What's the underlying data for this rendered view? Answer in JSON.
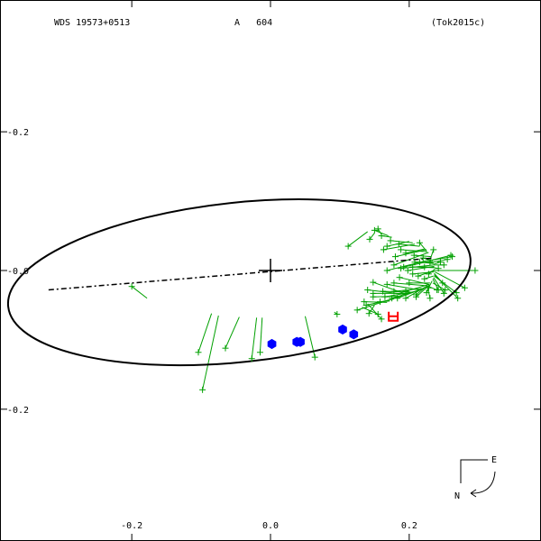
{
  "header": {
    "system": "WDS 19573+0513",
    "pair": "A   604",
    "reference": "(Tok2015c)"
  },
  "orientation": {
    "east_label": "E",
    "north_label": "N"
  },
  "colors": {
    "frame": "#000000",
    "orbit": "#000000",
    "measures": "#00a000",
    "speckle": "#0000ff",
    "highlight": "#ff0000"
  },
  "chart_data": {
    "type": "scatter",
    "title": "",
    "xlim": [
      -0.39,
      0.39
    ],
    "ylim": [
      -0.39,
      0.39
    ],
    "x_ticks": [
      {
        "value": -0.2,
        "label": "-0.2"
      },
      {
        "value": 0.0,
        "label": "0.0"
      },
      {
        "value": 0.2,
        "label": "0.2"
      }
    ],
    "y_ticks": [
      {
        "value": 0.2,
        "label": "-0.2"
      },
      {
        "value": 0.0,
        "label": "-0.0"
      },
      {
        "value": -0.2,
        "label": "-0.2"
      }
    ],
    "primary": [
      0,
      0
    ],
    "orbit_ellipse": {
      "center": [
        -0.045,
        -0.017
      ],
      "a": 0.335,
      "b": 0.115,
      "angle_deg": 6
    },
    "line_of_nodes": [
      [
        -0.32,
        -0.028
      ],
      [
        0.235,
        0.018
      ]
    ],
    "visual_measures": [
      {
        "obs": [
          -0.2,
          -0.023
        ],
        "orb": [
          -0.178,
          -0.04
        ]
      },
      {
        "obs": [
          -0.104,
          -0.118
        ],
        "orb": [
          -0.085,
          -0.062
        ]
      },
      {
        "obs": [
          -0.098,
          -0.172
        ],
        "orb": [
          -0.075,
          -0.065
        ]
      },
      {
        "obs": [
          -0.065,
          -0.112
        ],
        "orb": [
          -0.045,
          -0.067
        ]
      },
      {
        "obs": [
          -0.027,
          -0.127
        ],
        "orb": [
          -0.02,
          -0.068
        ]
      },
      {
        "obs": [
          -0.015,
          -0.118
        ],
        "orb": [
          -0.012,
          -0.068
        ]
      },
      {
        "obs": [
          0.064,
          -0.125
        ],
        "orb": [
          0.05,
          -0.066
        ]
      },
      {
        "obs": [
          0.096,
          -0.063
        ],
        "orb": [
          0.092,
          -0.06
        ]
      },
      {
        "obs": [
          0.155,
          -0.063
        ],
        "orb": [
          0.132,
          -0.053
        ]
      },
      {
        "obs": [
          0.16,
          -0.07
        ],
        "orb": [
          0.14,
          -0.048
        ]
      },
      {
        "obs": [
          0.125,
          -0.057
        ],
        "orb": [
          0.185,
          -0.038
        ]
      },
      {
        "obs": [
          0.148,
          -0.033
        ],
        "orb": [
          0.2,
          -0.033
        ]
      },
      {
        "obs": [
          0.165,
          -0.038
        ],
        "orb": [
          0.21,
          -0.03
        ]
      },
      {
        "obs": [
          0.178,
          -0.03
        ],
        "orb": [
          0.218,
          -0.026
        ]
      },
      {
        "obs": [
          0.175,
          -0.04
        ],
        "orb": [
          0.212,
          -0.029
        ]
      },
      {
        "obs": [
          0.195,
          -0.04
        ],
        "orb": [
          0.223,
          -0.024
        ]
      },
      {
        "obs": [
          0.21,
          -0.035
        ],
        "orb": [
          0.226,
          -0.022
        ]
      },
      {
        "obs": [
          0.178,
          -0.018
        ],
        "orb": [
          0.225,
          -0.022
        ]
      },
      {
        "obs": [
          0.2,
          -0.018
        ],
        "orb": [
          0.23,
          -0.018
        ]
      },
      {
        "obs": [
          0.228,
          -0.025
        ],
        "orb": [
          0.233,
          -0.015
        ]
      },
      {
        "obs": [
          0.242,
          -0.028
        ],
        "orb": [
          0.234,
          -0.012
        ]
      },
      {
        "obs": [
          0.25,
          -0.033
        ],
        "orb": [
          0.235,
          -0.01
        ]
      },
      {
        "obs": [
          0.268,
          -0.032
        ],
        "orb": [
          0.236,
          -0.008
        ]
      },
      {
        "obs": [
          0.27,
          -0.04
        ],
        "orb": [
          0.236,
          -0.006
        ]
      },
      {
        "obs": [
          0.28,
          -0.025
        ],
        "orb": [
          0.237,
          -0.002
        ]
      },
      {
        "obs": [
          0.248,
          -0.018
        ],
        "orb": [
          0.236,
          -0.004
        ]
      },
      {
        "obs": [
          0.213,
          -0.008
        ],
        "orb": [
          0.236,
          0.0
        ]
      },
      {
        "obs": [
          0.228,
          -0.005
        ],
        "orb": [
          0.237,
          0.002
        ]
      },
      {
        "obs": [
          0.205,
          0.005
        ],
        "orb": [
          0.236,
          0.004
        ]
      },
      {
        "obs": [
          0.198,
          0.0
        ],
        "orb": [
          0.236,
          0.006
        ]
      },
      {
        "obs": [
          0.188,
          0.003
        ],
        "orb": [
          0.235,
          0.008
        ]
      },
      {
        "obs": [
          0.208,
          0.012
        ],
        "orb": [
          0.234,
          0.012
        ]
      },
      {
        "obs": [
          0.22,
          0.018
        ],
        "orb": [
          0.234,
          0.014
        ]
      },
      {
        "obs": [
          0.23,
          0.012
        ],
        "orb": [
          0.235,
          0.01
        ]
      },
      {
        "obs": [
          0.262,
          0.02
        ],
        "orb": [
          0.233,
          0.015
        ]
      },
      {
        "obs": [
          0.26,
          0.022
        ],
        "orb": [
          0.233,
          0.015
        ]
      },
      {
        "obs": [
          0.255,
          0.016
        ],
        "orb": [
          0.234,
          0.012
        ]
      },
      {
        "obs": [
          0.242,
          0.003
        ],
        "orb": [
          0.236,
          0.004
        ]
      },
      {
        "obs": [
          0.25,
          0.008
        ],
        "orb": [
          0.235,
          0.008
        ]
      },
      {
        "obs": [
          0.215,
          0.04
        ],
        "orb": [
          0.225,
          0.028
        ]
      },
      {
        "obs": [
          0.195,
          0.025
        ],
        "orb": [
          0.222,
          0.031
        ]
      },
      {
        "obs": [
          0.173,
          0.043
        ],
        "orb": [
          0.205,
          0.04
        ]
      },
      {
        "obs": [
          0.168,
          0.035
        ],
        "orb": [
          0.2,
          0.042
        ]
      },
      {
        "obs": [
          0.16,
          0.05
        ],
        "orb": [
          0.175,
          0.048
        ]
      },
      {
        "obs": [
          0.155,
          0.06
        ],
        "orb": [
          0.16,
          0.052
        ]
      },
      {
        "obs": [
          0.143,
          0.045
        ],
        "orb": [
          0.15,
          0.054
        ]
      },
      {
        "obs": [
          0.112,
          0.035
        ],
        "orb": [
          0.14,
          0.056
        ]
      },
      {
        "obs": [
          0.178,
          0.008
        ],
        "orb": [
          0.228,
          0.026
        ]
      },
      {
        "obs": [
          0.148,
          -0.017
        ],
        "orb": [
          0.195,
          -0.034
        ]
      },
      {
        "obs": [
          0.138,
          -0.05
        ],
        "orb": [
          0.178,
          -0.041
        ]
      },
      {
        "obs": [
          0.24,
          -0.028
        ],
        "orb": [
          0.228,
          -0.023
        ]
      },
      {
        "obs": [
          0.15,
          0.058
        ],
        "orb": [
          0.17,
          0.05
        ]
      },
      {
        "obs": [
          0.295,
          0.0
        ],
        "orb": [
          0.236,
          0.0
        ]
      },
      {
        "obs": [
          0.235,
          0.03
        ],
        "orb": [
          0.231,
          0.018
        ]
      },
      {
        "obs": [
          0.245,
          0.012
        ],
        "orb": [
          0.235,
          0.009
        ]
      },
      {
        "obs": [
          0.185,
          0.038
        ],
        "orb": [
          0.215,
          0.035
        ]
      },
      {
        "obs": [
          0.163,
          0.03
        ],
        "orb": [
          0.208,
          0.038
        ]
      },
      {
        "obs": [
          0.18,
          0.02
        ],
        "orb": [
          0.225,
          0.03
        ]
      },
      {
        "obs": [
          0.168,
          0.0
        ],
        "orb": [
          0.232,
          0.016
        ]
      },
      {
        "obs": [
          0.252,
          -0.028
        ],
        "orb": [
          0.234,
          -0.018
        ]
      },
      {
        "obs": [
          0.21,
          -0.038
        ],
        "orb": [
          0.228,
          -0.022
        ]
      },
      {
        "obs": [
          0.183,
          -0.04
        ],
        "orb": [
          0.22,
          -0.026
        ]
      },
      {
        "obs": [
          0.195,
          -0.03
        ],
        "orb": [
          0.229,
          -0.02
        ]
      },
      {
        "obs": [
          0.225,
          -0.032
        ],
        "orb": [
          0.23,
          -0.02
        ]
      },
      {
        "obs": [
          0.222,
          -0.012
        ],
        "orb": [
          0.235,
          -0.008
        ]
      },
      {
        "obs": [
          0.205,
          -0.005
        ],
        "orb": [
          0.236,
          -0.002
        ]
      },
      {
        "obs": [
          0.215,
          0.012
        ],
        "orb": [
          0.235,
          0.01
        ]
      },
      {
        "obs": [
          0.207,
          0.022
        ],
        "orb": [
          0.232,
          0.02
        ]
      },
      {
        "obs": [
          0.188,
          0.03
        ],
        "orb": [
          0.226,
          0.027
        ]
      },
      {
        "obs": [
          0.192,
          0.005
        ],
        "orb": [
          0.232,
          0.014
        ]
      },
      {
        "obs": [
          0.222,
          0.005
        ],
        "orb": [
          0.236,
          0.005
        ]
      },
      {
        "obs": [
          0.148,
          -0.038
        ],
        "orb": [
          0.19,
          -0.037
        ]
      },
      {
        "obs": [
          0.168,
          -0.02
        ],
        "orb": [
          0.214,
          -0.028
        ]
      },
      {
        "obs": [
          0.162,
          -0.03
        ],
        "orb": [
          0.202,
          -0.031
        ]
      },
      {
        "obs": [
          0.186,
          -0.01
        ],
        "orb": [
          0.228,
          -0.02
        ]
      },
      {
        "obs": [
          0.158,
          -0.045
        ],
        "orb": [
          0.172,
          -0.044
        ]
      },
      {
        "obs": [
          0.142,
          -0.062
        ],
        "orb": [
          0.15,
          -0.05
        ]
      },
      {
        "obs": [
          0.135,
          -0.045
        ],
        "orb": [
          0.168,
          -0.046
        ]
      },
      {
        "obs": [
          0.14,
          -0.028
        ],
        "orb": [
          0.198,
          -0.035
        ]
      },
      {
        "obs": [
          0.23,
          -0.04
        ],
        "orb": [
          0.226,
          -0.022
        ]
      }
    ],
    "speckle_measures": [
      {
        "obs": [
          0.002,
          -0.106
        ],
        "orb": [
          0.0,
          -0.106
        ]
      },
      {
        "obs": [
          0.038,
          -0.103
        ],
        "orb": [
          0.036,
          -0.103
        ]
      },
      {
        "obs": [
          0.043,
          -0.103
        ],
        "orb": [
          0.042,
          -0.102
        ]
      },
      {
        "obs": [
          0.104,
          -0.085
        ],
        "orb": [
          0.102,
          -0.086
        ]
      },
      {
        "obs": [
          0.12,
          -0.092
        ],
        "orb": [
          0.117,
          -0.088
        ]
      }
    ],
    "highlight_measure": {
      "obs": [
        0.177,
        -0.066
      ],
      "orb": [
        0.171,
        -0.066
      ]
    }
  }
}
